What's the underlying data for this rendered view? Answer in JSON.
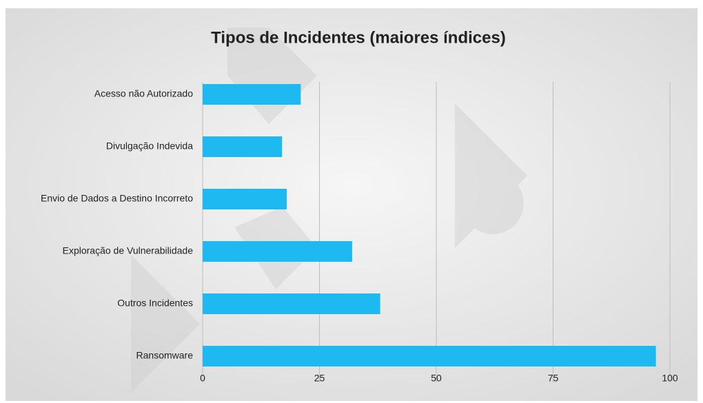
{
  "chart_data": {
    "type": "bar",
    "horizontal": true,
    "title": "Tipos de Incidentes (maiores índices)",
    "categories": [
      "Acesso não Autorizado",
      "Divulgação Indevida",
      "Envio de Dados a Destino Incorreto",
      "Exploração de Vulnerabilidade",
      "Outros Incidentes",
      "Ransomware"
    ],
    "values": [
      21,
      17,
      18,
      32,
      38,
      97
    ],
    "color": "#1fb9f2",
    "xlim": [
      0,
      100
    ],
    "xticks": [
      0,
      25,
      50,
      75,
      100
    ],
    "grid": true
  }
}
